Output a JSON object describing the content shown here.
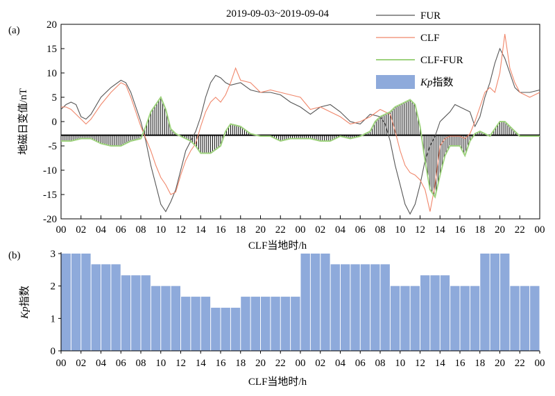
{
  "chart_data": [
    {
      "panel_label": "(a)",
      "type": "line",
      "title": "2019-09-03~2019-09-04",
      "ylabel": "地磁日变值/nT",
      "xlabel": "CLF当地时/h",
      "ylim": [
        -20,
        20
      ],
      "yticks": [
        "20",
        "15",
        "10",
        "5",
        "0",
        "-5",
        "-10",
        "-15",
        "-20"
      ],
      "xticks": [
        "00",
        "02",
        "04",
        "06",
        "08",
        "10",
        "12",
        "14",
        "16",
        "18",
        "20",
        "22",
        "00",
        "02",
        "04",
        "06",
        "08",
        "10",
        "12",
        "14",
        "16",
        "18",
        "20",
        "22",
        "00"
      ],
      "x_range_hours": [
        0,
        48
      ],
      "baseline_y": -2.8,
      "legend": [
        {
          "label": "FUR",
          "color": "#555555",
          "kind": "line"
        },
        {
          "label": "CLF",
          "color": "#f0866a",
          "kind": "line"
        },
        {
          "label": "CLF-FUR",
          "color": "#9ed27e",
          "kind": "line"
        },
        {
          "label": "Kp指数",
          "label_italic": "Kp",
          "label_rest": "指数",
          "color": "#8eaadb",
          "kind": "bar"
        }
      ],
      "series": [
        {
          "name": "FUR",
          "color": "#555555",
          "points": [
            [
              0,
              2.5
            ],
            [
              0.5,
              3.5
            ],
            [
              1,
              4
            ],
            [
              1.5,
              3.5
            ],
            [
              2,
              1
            ],
            [
              2.5,
              0.5
            ],
            [
              3,
              1.5
            ],
            [
              4,
              5
            ],
            [
              5,
              7
            ],
            [
              6,
              8.5
            ],
            [
              6.5,
              8
            ],
            [
              7,
              6
            ],
            [
              7.5,
              3
            ],
            [
              8,
              0
            ],
            [
              8.5,
              -4
            ],
            [
              9,
              -9
            ],
            [
              9.5,
              -13
            ],
            [
              10,
              -17
            ],
            [
              10.5,
              -18.5
            ],
            [
              11,
              -16.5
            ],
            [
              11.5,
              -14
            ],
            [
              12,
              -10
            ],
            [
              12.5,
              -6
            ],
            [
              13,
              -4
            ],
            [
              13.5,
              -2
            ],
            [
              14,
              1
            ],
            [
              14.5,
              5
            ],
            [
              15,
              8
            ],
            [
              15.5,
              9.5
            ],
            [
              16,
              9
            ],
            [
              16.5,
              8
            ],
            [
              17,
              7.5
            ],
            [
              18,
              8
            ],
            [
              19,
              6.5
            ],
            [
              20,
              6
            ],
            [
              21,
              6
            ],
            [
              22,
              5.5
            ],
            [
              23,
              4
            ],
            [
              24,
              3
            ],
            [
              25,
              1.5
            ],
            [
              26,
              3
            ],
            [
              27,
              3.5
            ],
            [
              28,
              2
            ],
            [
              29,
              0
            ],
            [
              30,
              -0.5
            ],
            [
              31,
              1.5
            ],
            [
              32,
              1
            ],
            [
              32.5,
              -0.5
            ],
            [
              33,
              -4
            ],
            [
              33.5,
              -9
            ],
            [
              34,
              -13
            ],
            [
              34.5,
              -17
            ],
            [
              35,
              -19
            ],
            [
              35.5,
              -17
            ],
            [
              36,
              -13
            ],
            [
              36.5,
              -8
            ],
            [
              37,
              -5
            ],
            [
              37.5,
              -3
            ],
            [
              38,
              0
            ],
            [
              39,
              2
            ],
            [
              39.5,
              3.5
            ],
            [
              40,
              3
            ],
            [
              40.5,
              2.5
            ],
            [
              41,
              2
            ],
            [
              41.5,
              -1
            ],
            [
              42,
              1
            ],
            [
              42.5,
              5
            ],
            [
              43,
              8
            ],
            [
              43.5,
              12
            ],
            [
              44,
              15
            ],
            [
              44.5,
              13
            ],
            [
              45,
              10
            ],
            [
              45.5,
              7
            ],
            [
              46,
              6
            ],
            [
              47,
              6
            ],
            [
              48,
              6.5
            ]
          ]
        },
        {
          "name": "CLF",
          "color": "#f0866a",
          "points": [
            [
              0,
              3
            ],
            [
              0.5,
              3
            ],
            [
              1,
              2.5
            ],
            [
              1.5,
              1.5
            ],
            [
              2,
              0.5
            ],
            [
              2.5,
              -0.5
            ],
            [
              3,
              0.5
            ],
            [
              4,
              3.5
            ],
            [
              5,
              6
            ],
            [
              6,
              8
            ],
            [
              6.5,
              7.5
            ],
            [
              7,
              5
            ],
            [
              7.5,
              2
            ],
            [
              8,
              -1
            ],
            [
              8.5,
              -3.5
            ],
            [
              9,
              -6
            ],
            [
              9.5,
              -9
            ],
            [
              10,
              -11.5
            ],
            [
              10.5,
              -13
            ],
            [
              11,
              -15
            ],
            [
              11.5,
              -14.5
            ],
            [
              12,
              -11
            ],
            [
              12.5,
              -8
            ],
            [
              13,
              -6
            ],
            [
              13.5,
              -4.5
            ],
            [
              14,
              -1
            ],
            [
              14.5,
              2
            ],
            [
              15,
              4
            ],
            [
              15.5,
              5
            ],
            [
              16,
              4
            ],
            [
              16.5,
              5.5
            ],
            [
              17,
              8
            ],
            [
              17.5,
              11
            ],
            [
              18,
              8.5
            ],
            [
              19,
              8
            ],
            [
              20,
              6
            ],
            [
              21,
              6.5
            ],
            [
              22,
              6
            ],
            [
              23,
              5.5
            ],
            [
              24,
              5
            ],
            [
              25,
              2.5
            ],
            [
              26,
              3
            ],
            [
              27,
              2
            ],
            [
              28,
              1
            ],
            [
              29,
              -0.5
            ],
            [
              30,
              0
            ],
            [
              31,
              1
            ],
            [
              32,
              2.5
            ],
            [
              33,
              1.5
            ],
            [
              33.5,
              -2
            ],
            [
              34,
              -6
            ],
            [
              34.5,
              -9
            ],
            [
              35,
              -10.5
            ],
            [
              35.5,
              -11
            ],
            [
              36,
              -12
            ],
            [
              36.5,
              -14
            ],
            [
              37,
              -18.5
            ],
            [
              37.5,
              -13
            ],
            [
              38,
              -5
            ],
            [
              38.5,
              -3.5
            ],
            [
              39,
              -3
            ],
            [
              39.5,
              -3
            ],
            [
              40,
              -3
            ],
            [
              40.5,
              -3.5
            ],
            [
              41,
              -2.5
            ],
            [
              41.5,
              0
            ],
            [
              42,
              3
            ],
            [
              42.5,
              6
            ],
            [
              43,
              7
            ],
            [
              43.5,
              6
            ],
            [
              44,
              10
            ],
            [
              44.5,
              18
            ],
            [
              45,
              11
            ],
            [
              45.5,
              8
            ],
            [
              46,
              6
            ],
            [
              47,
              5
            ],
            [
              48,
              6
            ]
          ]
        },
        {
          "name": "CLF-FUR",
          "color": "#9ed27e",
          "points": [
            [
              0,
              -4
            ],
            [
              1,
              -4
            ],
            [
              2,
              -3.5
            ],
            [
              3,
              -3.5
            ],
            [
              4,
              -4.5
            ],
            [
              5,
              -5
            ],
            [
              6,
              -5
            ],
            [
              7,
              -4
            ],
            [
              8,
              -3.5
            ],
            [
              8.5,
              -1
            ],
            [
              9,
              2
            ],
            [
              9.5,
              3.5
            ],
            [
              10,
              5
            ],
            [
              10.5,
              2.5
            ],
            [
              11,
              -1.5
            ],
            [
              11.5,
              -2.5
            ],
            [
              12,
              -3
            ],
            [
              13,
              -4
            ],
            [
              13.5,
              -5
            ],
            [
              14,
              -6.5
            ],
            [
              15,
              -6.5
            ],
            [
              16,
              -5
            ],
            [
              16.5,
              -2
            ],
            [
              17,
              -0.5
            ],
            [
              18,
              -1
            ],
            [
              19,
              -2.5
            ],
            [
              20,
              -3
            ],
            [
              21,
              -3
            ],
            [
              22,
              -4
            ],
            [
              23,
              -3.5
            ],
            [
              24,
              -3.5
            ],
            [
              25,
              -3.5
            ],
            [
              26,
              -4
            ],
            [
              27,
              -4
            ],
            [
              28,
              -3
            ],
            [
              29,
              -3.5
            ],
            [
              30,
              -3
            ],
            [
              31,
              -2
            ],
            [
              31.5,
              0
            ],
            [
              32,
              1
            ],
            [
              32.5,
              1.5
            ],
            [
              33,
              2
            ],
            [
              33.5,
              3
            ],
            [
              34,
              3.5
            ],
            [
              34.5,
              4
            ],
            [
              35,
              4.5
            ],
            [
              35.5,
              3.5
            ],
            [
              36,
              -1
            ],
            [
              36.5,
              -8
            ],
            [
              37,
              -14
            ],
            [
              37.5,
              -15.5
            ],
            [
              38,
              -11
            ],
            [
              38.5,
              -7
            ],
            [
              39,
              -5
            ],
            [
              40,
              -5
            ],
            [
              40.5,
              -7
            ],
            [
              41,
              -4
            ],
            [
              41.5,
              -2.5
            ],
            [
              42,
              -2
            ],
            [
              43,
              -3
            ],
            [
              43.5,
              -1.5
            ],
            [
              44,
              0
            ],
            [
              44.5,
              0
            ],
            [
              45,
              -1
            ],
            [
              46,
              -3
            ],
            [
              47,
              -3
            ],
            [
              48,
              -3
            ]
          ]
        }
      ]
    },
    {
      "panel_label": "(b)",
      "type": "bar",
      "ylabel": "Kp指数",
      "ylabel_italic": "Kp",
      "ylabel_rest": "指数",
      "xlabel": "CLF当地时/h",
      "ylim": [
        0,
        3
      ],
      "yticks": [
        "0",
        "1",
        "2",
        "3"
      ],
      "xticks": [
        "00",
        "02",
        "04",
        "06",
        "08",
        "10",
        "12",
        "14",
        "16",
        "18",
        "20",
        "22",
        "00",
        "02",
        "04",
        "06",
        "08",
        "10",
        "12",
        "14",
        "16",
        "18",
        "20",
        "22",
        "00"
      ],
      "color": "#8eaadb",
      "values": [
        3,
        3,
        3,
        2.67,
        2.67,
        2.67,
        2.33,
        2.33,
        2.33,
        2,
        2,
        2,
        1.67,
        1.67,
        1.67,
        1.33,
        1.33,
        1.33,
        1.67,
        1.67,
        1.67,
        1.67,
        1.67,
        1.67,
        3,
        3,
        3,
        2.67,
        2.67,
        2.67,
        2.67,
        2.67,
        2.67,
        2,
        2,
        2,
        2.33,
        2.33,
        2.33,
        2,
        2,
        2,
        3,
        3,
        3,
        2,
        2,
        2
      ]
    }
  ]
}
